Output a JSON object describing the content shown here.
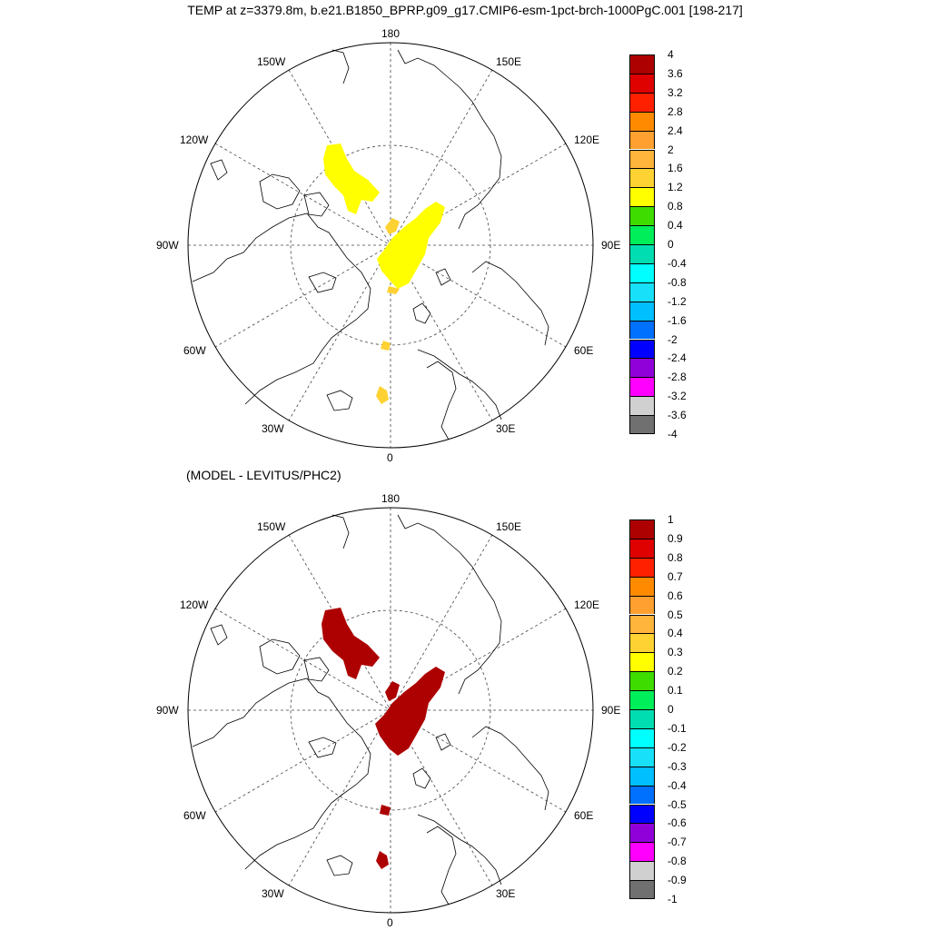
{
  "title": "TEMP at z=3379.8m, b.e21.B1850_BPRP.g09_g17.CMIP6-esm-1pct-brch-1000PgC.001 [198-217]",
  "subtitle": "(MODEL - LEVITUS/PHC2)",
  "map_labels": {
    "lon_180": "180",
    "lon_0": "0",
    "lon_150W": "150W",
    "lon_150E": "150E",
    "lon_120W": "120W",
    "lon_120E": "120E",
    "lon_90W": "90W",
    "lon_90E": "90E",
    "lon_60W": "60W",
    "lon_60E": "60E",
    "lon_30W": "30W",
    "lon_30E": "30E"
  },
  "colorbar_colors": [
    "#ad0000",
    "#df0000",
    "#ff2000",
    "#ff8a00",
    "#ffa030",
    "#ffb43c",
    "#ffd233",
    "#ffff00",
    "#3fdc00",
    "#00ee5a",
    "#00ddb0",
    "#00ffff",
    "#18e0f8",
    "#00bfff",
    "#0070ff",
    "#0000ff",
    "#9000d8",
    "#ff00ff",
    "#d0d0d0",
    "#707070"
  ],
  "colorbar_top": {
    "labels": [
      "4",
      "3.6",
      "3.2",
      "2.8",
      "2.4",
      "2",
      "1.6",
      "1.2",
      "0.8",
      "0.4",
      "0",
      "-0.4",
      "-0.8",
      "-1.2",
      "-1.6",
      "-2",
      "-2.4",
      "-2.8",
      "-3.2",
      "-3.6",
      "-4"
    ]
  },
  "colorbar_bottom": {
    "labels": [
      "1",
      "0.9",
      "0.8",
      "0.7",
      "0.6",
      "0.5",
      "0.4",
      "0.3",
      "0.2",
      "0.1",
      "0",
      "-0.1",
      "-0.2",
      "-0.3",
      "-0.4",
      "-0.5",
      "-0.6",
      "-0.7",
      "-0.8",
      "-0.9",
      "-1"
    ]
  },
  "field_colors": {
    "top_main": "#ffff00",
    "top_minor": "#ffd233",
    "bottom": "#ad0000"
  }
}
